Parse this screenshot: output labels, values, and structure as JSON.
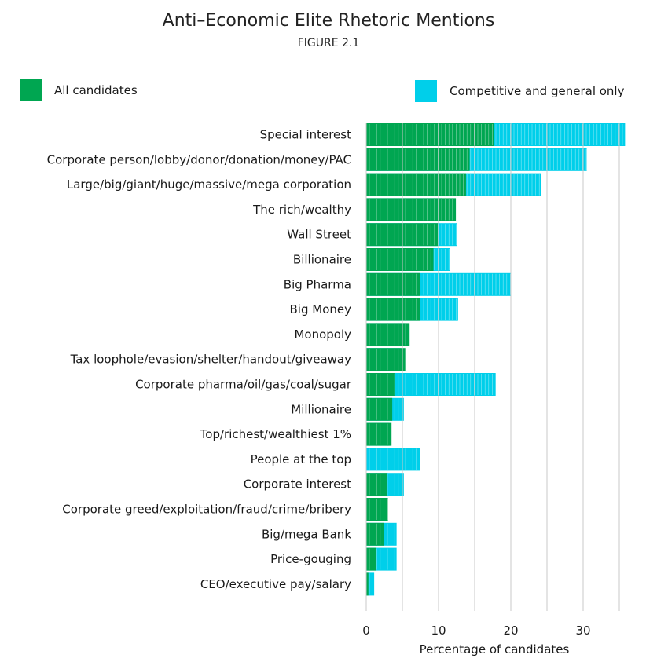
{
  "header": {
    "title": "Anti–Economic Elite Rhetoric Mentions",
    "subtitle": "FIGURE 2.1"
  },
  "legend": [
    {
      "label": "All candidates",
      "color": "#00a651"
    },
    {
      "label": "Competitive and general only",
      "color": "#00cfea"
    }
  ],
  "chart_data": {
    "type": "bar",
    "orientation": "horizontal",
    "title": "Anti–Economic Elite Rhetoric Mentions",
    "subtitle": "FIGURE 2.1",
    "xlabel": "Percentage of candidates",
    "ylabel": "",
    "xlim": [
      0,
      36
    ],
    "xticks": [
      0,
      10,
      20,
      30
    ],
    "grid": "vertical",
    "legend_position": "top",
    "categories": [
      "Special interest",
      "Corporate person/lobby/donor/donation/money/PAC",
      "Large/big/giant/huge/massive/mega corporation",
      "The rich/wealthy",
      "Wall Street",
      "Billionaire",
      "Big Pharma",
      "Big Money",
      "Monopoly",
      "Tax loophole/evasion/shelter/handout/giveaway",
      "Corporate pharma/oil/gas/coal/sugar",
      "Millionaire",
      "Top/richest/wealthiest 1%",
      "People at the top",
      "Corporate interest",
      "Corporate greed/exploitation/fraud/crime/bribery",
      "Big/mega Bank",
      "Price-gouging",
      "CEO/executive pay/salary"
    ],
    "series": [
      {
        "name": "All candidates",
        "color": "#00a651",
        "values": [
          17.7,
          14.3,
          13.8,
          12.4,
          9.9,
          9.3,
          7.4,
          7.4,
          6.0,
          5.4,
          3.9,
          3.6,
          3.5,
          0.0,
          2.9,
          3.0,
          2.5,
          1.4,
          0.3
        ]
      },
      {
        "name": "Competitive and general only",
        "color": "#00cfea",
        "values": [
          35.8,
          30.5,
          24.2,
          10.5,
          12.6,
          11.6,
          20.0,
          12.7,
          5.3,
          4.8,
          17.9,
          5.2,
          3.2,
          7.4,
          5.2,
          2.6,
          4.2,
          4.2,
          1.1
        ]
      }
    ]
  }
}
